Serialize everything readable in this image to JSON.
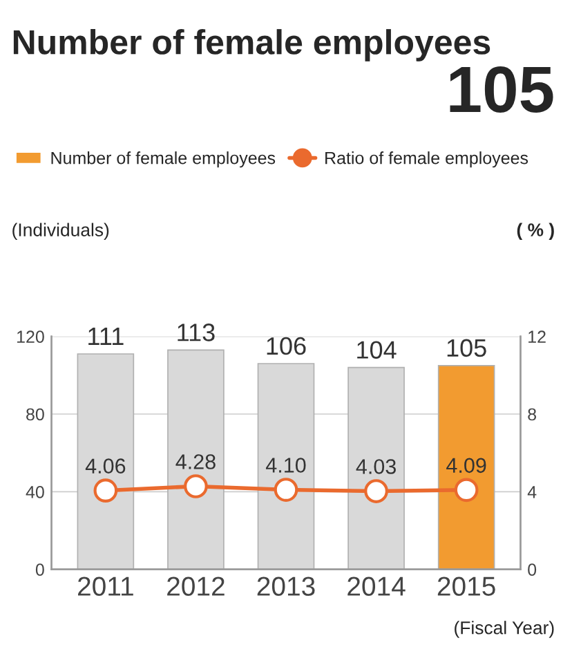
{
  "chart_data": {
    "type": "bar",
    "title": "Number of female employees",
    "categories": [
      "2011",
      "2012",
      "2013",
      "2014",
      "2015"
    ],
    "series": [
      {
        "name": "Number of female employees",
        "colors": [
          "#d9d9d9",
          "#d9d9d9",
          "#d9d9d9",
          "#d9d9d9",
          "#f29b30"
        ],
        "color": "#f29b30",
        "values": [
          111,
          113,
          106,
          104,
          105
        ],
        "value_labels": [
          "111",
          "113",
          "106",
          "104",
          "105"
        ]
      },
      {
        "name": "Ratio of female employees",
        "type": "line",
        "axis": "y2",
        "color": "#ea6a2e",
        "values": [
          4.06,
          4.28,
          4.1,
          4.03,
          4.09
        ],
        "value_labels": [
          "4.06",
          "4.28",
          "4.10",
          "4.03",
          "4.09"
        ]
      }
    ],
    "ylabel": "(Individuals)",
    "y2label": "( % )",
    "xlabel": "(Fiscal Year)",
    "ylim": [
      0,
      120
    ],
    "yticks": [
      0,
      40,
      80,
      120
    ],
    "y2lim": [
      0,
      12
    ],
    "y2ticks": [
      0,
      4,
      8,
      12
    ],
    "grid": "y",
    "legend": "top",
    "marker": "circle",
    "annotations": [
      "105"
    ]
  }
}
